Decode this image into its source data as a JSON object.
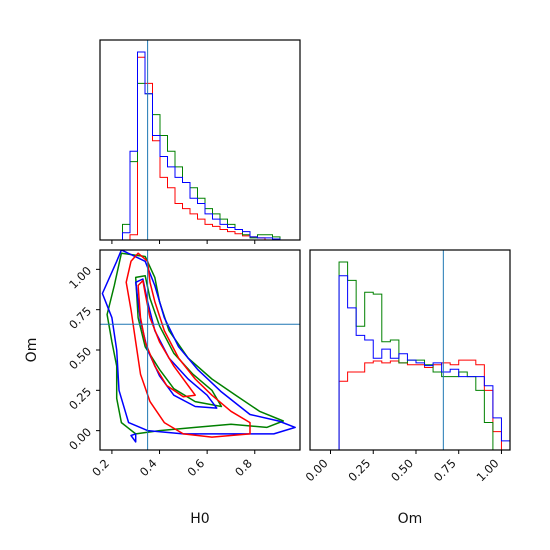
{
  "chart_data": {
    "type": "corner",
    "parameters": [
      "H0",
      "Om"
    ],
    "truth": {
      "H0": 0.35,
      "Om": 0.66
    },
    "series": [
      {
        "color": "#ff0000",
        "key": "red"
      },
      {
        "color": "#008000",
        "key": "green"
      },
      {
        "color": "#0000ff",
        "key": "blue"
      }
    ],
    "panels": [
      {
        "id": "H0-marginal",
        "type": "histogram",
        "xlim": [
          0.15,
          0.99
        ],
        "bins": [
          0.15,
          0.1815,
          0.213,
          0.2445,
          0.276,
          0.3075,
          0.339,
          0.3705,
          0.402,
          0.4335,
          0.465,
          0.4965,
          0.528,
          0.5595,
          0.591,
          0.6225,
          0.654,
          0.6855,
          0.717,
          0.7485,
          0.78,
          0.8115,
          0.843,
          0.8745,
          0.906,
          0.9375,
          0.969,
          0.99
        ],
        "series": {
          "red": [
            0,
            0,
            0,
            0,
            0.5,
            17.5,
            15,
            9.5,
            6,
            5,
            3.5,
            3,
            2.5,
            2,
            1.5,
            1.3,
            1,
            0.8,
            0.6,
            0.4,
            0.3,
            0.2,
            0,
            0,
            0,
            0,
            0
          ],
          "green": [
            0,
            0,
            0,
            1.5,
            7.5,
            15,
            14,
            12,
            10,
            8.5,
            7,
            5.5,
            5,
            4,
            3,
            2.5,
            2,
            1.5,
            1,
            0.5,
            0.2,
            0.5,
            0.5,
            0.3,
            0,
            0,
            0
          ],
          "blue": [
            0,
            0,
            0,
            0.7,
            8.5,
            18,
            14,
            10,
            8,
            7,
            6,
            5.5,
            4,
            3.5,
            2.5,
            2,
            1.5,
            1.2,
            1,
            0.8,
            0.3,
            0.2,
            0.2,
            0.1,
            0,
            0,
            0
          ]
        }
      },
      {
        "id": "Om-marginal",
        "type": "histogram",
        "xlim": [
          -0.12,
          1.05
        ],
        "bins": [
          -0.12,
          0,
          0.05,
          0.1,
          0.15,
          0.2,
          0.25,
          0.3,
          0.35,
          0.4,
          0.45,
          0.5,
          0.55,
          0.6,
          0.65,
          0.7,
          0.75,
          0.8,
          0.85,
          0.9,
          0.95,
          1.0,
          1.05
        ],
        "series": {
          "red": [
            0,
            0,
            0.75,
            0.85,
            0.85,
            0.95,
            0.97,
            0.95,
            0.97,
            0.95,
            0.93,
            0.93,
            0.9,
            0.93,
            0.95,
            0.93,
            0.98,
            0.98,
            0.93,
            0.65,
            0.2,
            0
          ],
          "green": [
            0,
            0,
            2.05,
            1.85,
            1.35,
            1.72,
            1.7,
            1.18,
            1.2,
            0.95,
            0.98,
            0.98,
            0.93,
            0.85,
            0.8,
            0.8,
            0.85,
            0.8,
            0.65,
            0.3,
            0,
            0
          ],
          "blue": [
            0,
            0,
            1.9,
            1.55,
            1.25,
            1.2,
            1.0,
            1.1,
            1.0,
            1.05,
            0.98,
            0.95,
            0.92,
            0.95,
            0.85,
            0.88,
            0.8,
            0.8,
            0.8,
            0.7,
            0.35,
            0.1
          ]
        }
      },
      {
        "id": "H0-Om-joint",
        "type": "contour",
        "xlim": [
          0.15,
          0.99
        ],
        "ylim": [
          -0.12,
          1.12
        ],
        "xlabel": "H0",
        "ylabel": "Om",
        "xticks": [
          0.2,
          0.4,
          0.6,
          0.8
        ],
        "yticks": [
          0.0,
          0.25,
          0.5,
          0.75,
          1.0
        ],
        "contours": {
          "red": [
            [
              [
                0.28,
                1.05
              ],
              [
                0.31,
                1.1
              ],
              [
                0.35,
                1.05
              ],
              [
                0.36,
                0.92
              ],
              [
                0.38,
                0.8
              ],
              [
                0.42,
                0.62
              ],
              [
                0.48,
                0.45
              ],
              [
                0.55,
                0.32
              ],
              [
                0.62,
                0.22
              ],
              [
                0.7,
                0.12
              ],
              [
                0.78,
                0.05
              ],
              [
                0.78,
                -0.02
              ],
              [
                0.62,
                -0.04
              ],
              [
                0.5,
                -0.02
              ],
              [
                0.42,
                0.05
              ],
              [
                0.36,
                0.18
              ],
              [
                0.32,
                0.35
              ],
              [
                0.3,
                0.55
              ],
              [
                0.28,
                0.75
              ],
              [
                0.26,
                0.92
              ],
              [
                0.28,
                1.05
              ]
            ],
            [
              [
                0.31,
                0.9
              ],
              [
                0.33,
                0.93
              ],
              [
                0.34,
                0.85
              ],
              [
                0.36,
                0.7
              ],
              [
                0.4,
                0.55
              ],
              [
                0.46,
                0.4
              ],
              [
                0.52,
                0.28
              ],
              [
                0.55,
                0.22
              ],
              [
                0.5,
                0.21
              ],
              [
                0.43,
                0.28
              ],
              [
                0.38,
                0.4
              ],
              [
                0.34,
                0.55
              ],
              [
                0.32,
                0.7
              ],
              [
                0.31,
                0.9
              ]
            ]
          ],
          "green": [
            [
              [
                0.24,
                1.1
              ],
              [
                0.34,
                1.08
              ],
              [
                0.38,
                0.95
              ],
              [
                0.4,
                0.8
              ],
              [
                0.44,
                0.62
              ],
              [
                0.52,
                0.45
              ],
              [
                0.62,
                0.32
              ],
              [
                0.72,
                0.22
              ],
              [
                0.82,
                0.12
              ],
              [
                0.92,
                0.06
              ],
              [
                0.85,
                0.02
              ],
              [
                0.7,
                0.04
              ],
              [
                0.55,
                0.02
              ],
              [
                0.4,
                0.0
              ],
              [
                0.3,
                -0.02
              ],
              [
                0.24,
                0.05
              ],
              [
                0.22,
                0.2
              ],
              [
                0.22,
                0.4
              ],
              [
                0.2,
                0.55
              ],
              [
                0.18,
                0.72
              ],
              [
                0.21,
                0.9
              ],
              [
                0.24,
                1.1
              ]
            ],
            [
              [
                0.3,
                0.95
              ],
              [
                0.34,
                0.96
              ],
              [
                0.36,
                0.82
              ],
              [
                0.4,
                0.65
              ],
              [
                0.46,
                0.48
              ],
              [
                0.54,
                0.35
              ],
              [
                0.62,
                0.25
              ],
              [
                0.66,
                0.15
              ],
              [
                0.55,
                0.18
              ],
              [
                0.46,
                0.26
              ],
              [
                0.4,
                0.38
              ],
              [
                0.34,
                0.52
              ],
              [
                0.31,
                0.7
              ],
              [
                0.3,
                0.95
              ]
            ]
          ],
          "blue": [
            [
              [
                0.24,
                1.12
              ],
              [
                0.34,
                1.05
              ],
              [
                0.38,
                0.9
              ],
              [
                0.42,
                0.7
              ],
              [
                0.48,
                0.52
              ],
              [
                0.56,
                0.38
              ],
              [
                0.66,
                0.24
              ],
              [
                0.78,
                0.1
              ],
              [
                0.9,
                0.06
              ],
              [
                0.97,
                0.02
              ],
              [
                0.88,
                -0.02
              ],
              [
                0.7,
                -0.02
              ],
              [
                0.5,
                -0.02
              ],
              [
                0.35,
                0.0
              ],
              [
                0.27,
                0.05
              ],
              [
                0.23,
                0.25
              ],
              [
                0.22,
                0.5
              ],
              [
                0.2,
                0.7
              ],
              [
                0.16,
                0.85
              ],
              [
                0.22,
                1.05
              ],
              [
                0.24,
                1.12
              ]
            ],
            [
              [
                0.3,
                0.92
              ],
              [
                0.33,
                0.94
              ],
              [
                0.35,
                0.8
              ],
              [
                0.38,
                0.62
              ],
              [
                0.44,
                0.45
              ],
              [
                0.52,
                0.32
              ],
              [
                0.6,
                0.22
              ],
              [
                0.64,
                0.14
              ],
              [
                0.55,
                0.15
              ],
              [
                0.46,
                0.22
              ],
              [
                0.4,
                0.34
              ],
              [
                0.35,
                0.5
              ],
              [
                0.32,
                0.68
              ],
              [
                0.3,
                0.92
              ]
            ],
            [
              [
                0.28,
                -0.03
              ],
              [
                0.3,
                -0.07
              ],
              [
                0.3,
                -0.02
              ],
              [
                0.28,
                -0.03
              ]
            ]
          ]
        }
      }
    ],
    "om_xticks": [
      0.0,
      0.25,
      0.5,
      0.75,
      1.0
    ],
    "om_xtick_labels": [
      "0.00",
      "0.25",
      "0.50",
      "0.75",
      "1.00"
    ],
    "om_xlabel": "Om",
    "h0_xtick_labels": [
      "0.2",
      "0.4",
      "0.6",
      "0.8"
    ],
    "om_ytick_labels": [
      "0.00",
      "0.25",
      "0.50",
      "0.75",
      "1.00"
    ],
    "truth_line_color": "#1f77b4",
    "grid": false
  }
}
